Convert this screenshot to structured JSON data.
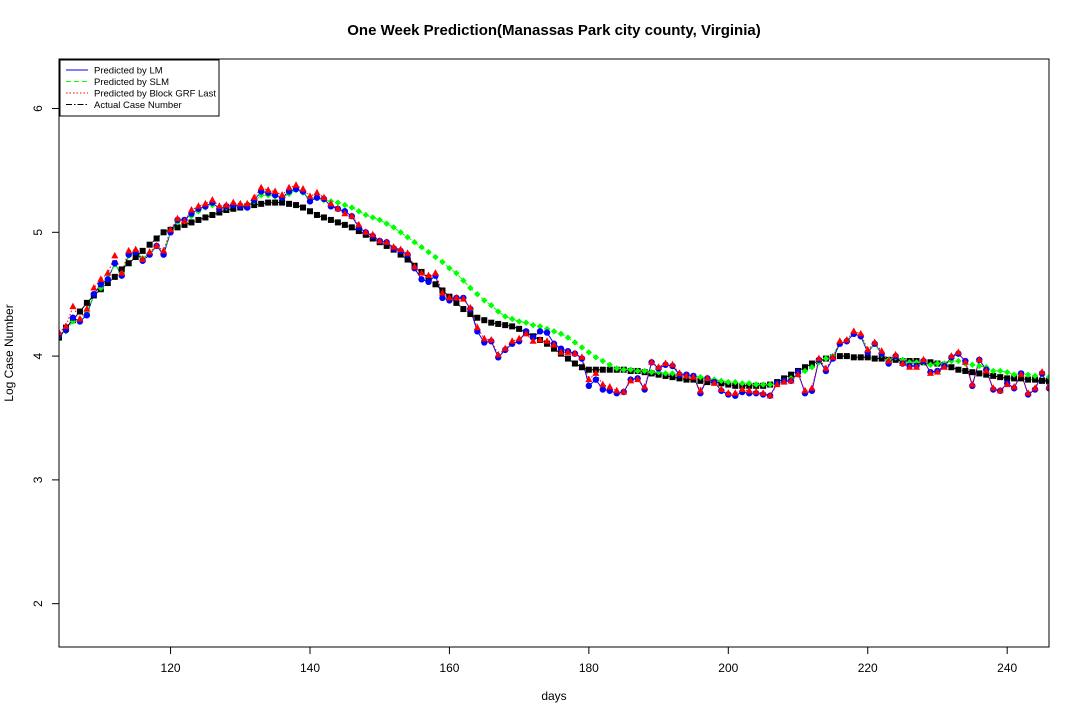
{
  "chart_data": {
    "type": "line",
    "title": "One Week Prediction(Manassas Park city county, Virginia)",
    "xlabel": "days",
    "ylabel": "Log Case Number",
    "xlim": [
      104,
      246
    ],
    "ylim": [
      1.65,
      6.4
    ],
    "x_ticks": [
      120,
      140,
      160,
      180,
      200,
      220,
      240
    ],
    "y_ticks": [
      2,
      3,
      4,
      5,
      6
    ],
    "grid": false,
    "legend_position": "top-left",
    "legend": [
      {
        "label": "Predicted by LM",
        "color": "#0000ff",
        "dash": "solid"
      },
      {
        "label": "Predicted by SLM",
        "color": "#00ff00",
        "dash": "dashed"
      },
      {
        "label": "Predicted by Block GRF Last",
        "color": "#ff0000",
        "dash": "dotted"
      },
      {
        "label": "Actual Case Number",
        "color": "#000000",
        "dash": "dashdot"
      }
    ],
    "x": [
      104,
      105,
      106,
      107,
      108,
      109,
      110,
      111,
      112,
      113,
      114,
      115,
      116,
      117,
      118,
      119,
      120,
      121,
      122,
      123,
      124,
      125,
      126,
      127,
      128,
      129,
      130,
      131,
      132,
      133,
      134,
      135,
      136,
      137,
      138,
      139,
      140,
      141,
      142,
      143,
      144,
      145,
      146,
      147,
      148,
      149,
      150,
      151,
      152,
      153,
      154,
      155,
      156,
      157,
      158,
      159,
      160,
      161,
      162,
      163,
      164,
      165,
      166,
      167,
      168,
      169,
      170,
      171,
      172,
      173,
      174,
      175,
      176,
      177,
      178,
      179,
      180,
      181,
      182,
      183,
      184,
      185,
      186,
      187,
      188,
      189,
      190,
      191,
      192,
      193,
      194,
      195,
      196,
      197,
      198,
      199,
      200,
      201,
      202,
      203,
      204,
      205,
      206,
      207,
      208,
      209,
      210,
      211,
      212,
      213,
      214,
      215,
      216,
      217,
      218,
      219,
      220,
      221,
      222,
      223,
      224,
      225,
      226,
      227,
      228,
      229,
      230,
      231,
      232,
      233,
      234,
      235,
      236,
      237,
      238,
      239,
      240,
      241,
      242,
      243,
      244,
      245,
      246
    ],
    "series": [
      {
        "name": "Predicted by LM",
        "color": "#0000ff",
        "values": [
          4.17,
          4.21,
          4.31,
          4.28,
          4.33,
          4.5,
          4.58,
          4.62,
          4.75,
          4.65,
          4.82,
          4.84,
          4.77,
          4.82,
          4.89,
          4.82,
          5.0,
          5.1,
          5.1,
          5.15,
          5.19,
          5.21,
          5.24,
          5.19,
          5.21,
          5.22,
          5.21,
          5.2,
          5.26,
          5.33,
          5.32,
          5.3,
          5.28,
          5.33,
          5.35,
          5.33,
          5.25,
          5.28,
          5.27,
          5.21,
          5.19,
          5.17,
          5.13,
          5.04,
          5.0,
          4.97,
          4.93,
          4.92,
          4.87,
          4.85,
          4.82,
          4.71,
          4.62,
          4.6,
          4.65,
          4.47,
          4.45,
          4.47,
          4.47,
          4.38,
          4.2,
          4.11,
          4.12,
          3.99,
          4.05,
          4.1,
          4.12,
          4.2,
          4.15,
          4.2,
          4.19,
          4.1,
          4.06,
          4.04,
          4.02,
          3.98,
          3.76,
          3.81,
          3.73,
          3.72,
          3.7,
          3.71,
          3.81,
          3.82,
          3.73,
          3.95,
          3.9,
          3.93,
          3.92,
          3.85,
          3.85,
          3.84,
          3.7,
          3.82,
          3.79,
          3.72,
          3.69,
          3.68,
          3.71,
          3.7,
          3.7,
          3.69,
          3.68,
          3.78,
          3.8,
          3.8,
          3.87,
          3.7,
          3.72,
          3.97,
          3.88,
          3.98,
          4.1,
          4.12,
          4.18,
          4.16,
          4.03,
          4.1,
          4.02,
          3.94,
          4.0,
          3.94,
          3.92,
          3.92,
          3.96,
          3.87,
          3.88,
          3.92,
          3.99,
          4.02,
          3.96,
          3.76,
          3.97,
          3.89,
          3.73,
          3.72,
          3.78,
          3.74,
          3.86,
          3.69,
          3.73,
          3.86,
          3.74
        ]
      },
      {
        "name": "Predicted by SLM",
        "color": "#00ff00",
        "values": [
          4.16,
          4.2,
          4.28,
          4.29,
          4.35,
          4.5,
          4.55,
          4.63,
          4.74,
          4.67,
          4.81,
          4.84,
          4.79,
          4.83,
          4.89,
          4.84,
          5.0,
          5.08,
          5.09,
          5.13,
          5.17,
          5.2,
          5.22,
          5.19,
          5.2,
          5.22,
          5.22,
          5.22,
          5.25,
          5.3,
          5.3,
          5.29,
          5.28,
          5.31,
          5.34,
          5.32,
          5.27,
          5.28,
          5.26,
          5.25,
          5.24,
          5.22,
          5.2,
          5.17,
          5.14,
          5.12,
          5.1,
          5.07,
          5.04,
          5.0,
          4.96,
          4.92,
          4.88,
          4.84,
          4.8,
          4.76,
          4.71,
          4.67,
          4.61,
          4.55,
          4.5,
          4.45,
          4.41,
          4.36,
          4.32,
          4.3,
          4.28,
          4.27,
          4.25,
          4.24,
          4.22,
          4.2,
          4.18,
          4.15,
          4.11,
          4.07,
          4.03,
          3.99,
          3.96,
          3.93,
          3.9,
          3.89,
          3.89,
          3.88,
          3.88,
          3.87,
          3.87,
          3.86,
          3.86,
          3.85,
          3.84,
          3.84,
          3.83,
          3.82,
          3.81,
          3.8,
          3.79,
          3.79,
          3.78,
          3.78,
          3.77,
          3.77,
          3.77,
          3.78,
          3.8,
          3.82,
          3.85,
          3.88,
          3.91,
          3.95,
          3.98,
          4.0,
          4.11,
          4.13,
          4.18,
          4.17,
          4.04,
          4.1,
          4.01,
          3.97,
          3.99,
          3.97,
          3.95,
          3.95,
          3.95,
          3.93,
          3.94,
          3.94,
          3.96,
          3.96,
          3.94,
          3.93,
          3.92,
          3.91,
          3.88,
          3.88,
          3.87,
          3.85,
          3.86,
          3.85,
          3.84,
          3.85,
          3.83
        ]
      },
      {
        "name": "Predicted by Block GRF Last",
        "color": "#ff0000",
        "values": [
          4.19,
          4.24,
          4.4,
          4.3,
          4.38,
          4.55,
          4.62,
          4.67,
          4.81,
          4.67,
          4.85,
          4.86,
          4.78,
          4.84,
          4.89,
          4.85,
          5.02,
          5.11,
          5.09,
          5.18,
          5.21,
          5.23,
          5.26,
          5.21,
          5.22,
          5.24,
          5.23,
          5.23,
          5.28,
          5.36,
          5.34,
          5.33,
          5.3,
          5.36,
          5.38,
          5.35,
          5.29,
          5.32,
          5.28,
          5.23,
          5.19,
          5.15,
          5.13,
          5.06,
          5.0,
          4.98,
          4.93,
          4.92,
          4.88,
          4.86,
          4.83,
          4.72,
          4.67,
          4.65,
          4.67,
          4.51,
          4.47,
          4.47,
          4.46,
          4.39,
          4.23,
          4.14,
          4.13,
          4.01,
          4.06,
          4.12,
          4.14,
          4.18,
          4.12,
          4.13,
          4.12,
          4.09,
          4.03,
          4.03,
          4.02,
          3.99,
          3.81,
          3.86,
          3.77,
          3.75,
          3.72,
          3.71,
          3.8,
          3.81,
          3.75,
          3.95,
          3.91,
          3.94,
          3.93,
          3.86,
          3.84,
          3.83,
          3.72,
          3.82,
          3.78,
          3.73,
          3.7,
          3.7,
          3.73,
          3.72,
          3.71,
          3.7,
          3.68,
          3.77,
          3.79,
          3.8,
          3.85,
          3.72,
          3.74,
          3.98,
          3.9,
          3.99,
          4.12,
          4.13,
          4.2,
          4.18,
          4.05,
          4.11,
          4.04,
          3.96,
          4.01,
          3.94,
          3.91,
          3.91,
          3.97,
          3.86,
          3.87,
          3.91,
          4.0,
          4.03,
          3.95,
          3.77,
          3.97,
          3.88,
          3.74,
          3.72,
          3.77,
          3.75,
          3.85,
          3.7,
          3.74,
          3.87,
          3.75
        ]
      },
      {
        "name": "Actual Case Number",
        "color": "#000000",
        "values": [
          4.15,
          4.23,
          4.29,
          4.36,
          4.43,
          4.49,
          4.54,
          4.59,
          4.64,
          4.7,
          4.75,
          4.8,
          4.85,
          4.9,
          4.95,
          5.0,
          5.02,
          5.04,
          5.06,
          5.08,
          5.1,
          5.12,
          5.14,
          5.16,
          5.18,
          5.19,
          5.2,
          5.21,
          5.22,
          5.23,
          5.24,
          5.24,
          5.24,
          5.23,
          5.22,
          5.2,
          5.17,
          5.14,
          5.12,
          5.1,
          5.08,
          5.06,
          5.04,
          5.01,
          4.98,
          4.95,
          4.92,
          4.89,
          4.86,
          4.82,
          4.78,
          4.73,
          4.68,
          4.63,
          4.58,
          4.53,
          4.48,
          4.43,
          4.38,
          4.34,
          4.31,
          4.29,
          4.27,
          4.26,
          4.25,
          4.24,
          4.22,
          4.19,
          4.16,
          4.13,
          4.1,
          4.06,
          4.02,
          3.98,
          3.94,
          3.91,
          3.89,
          3.89,
          3.89,
          3.89,
          3.89,
          3.89,
          3.88,
          3.88,
          3.87,
          3.86,
          3.85,
          3.84,
          3.83,
          3.82,
          3.81,
          3.81,
          3.8,
          3.79,
          3.79,
          3.78,
          3.77,
          3.76,
          3.76,
          3.76,
          3.76,
          3.76,
          3.77,
          3.79,
          3.82,
          3.85,
          3.88,
          3.91,
          3.94,
          3.96,
          3.98,
          3.99,
          4.0,
          4.0,
          3.99,
          3.99,
          3.99,
          3.98,
          3.98,
          3.97,
          3.97,
          3.96,
          3.96,
          3.96,
          3.95,
          3.95,
          3.94,
          3.93,
          3.91,
          3.89,
          3.88,
          3.87,
          3.86,
          3.85,
          3.84,
          3.83,
          3.82,
          3.82,
          3.82,
          3.81,
          3.81,
          3.8,
          3.8
        ]
      }
    ]
  }
}
